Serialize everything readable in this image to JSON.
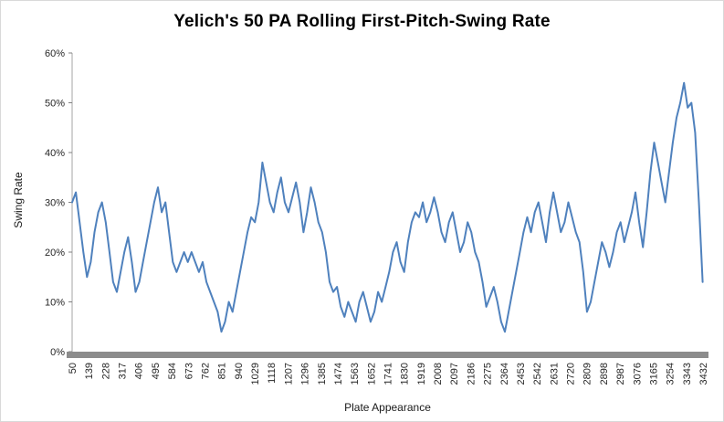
{
  "chart_data": {
    "type": "line",
    "title": "Yelich's 50 PA Rolling First-Pitch-Swing Rate",
    "xlabel": "Plate Appearance",
    "ylabel": "Swing Rate",
    "xlim": [
      50,
      3432
    ],
    "ylim": [
      0,
      60
    ],
    "y_ticks": [
      0,
      10,
      20,
      30,
      40,
      50,
      60
    ],
    "y_tick_labels": [
      "0%",
      "10%",
      "20%",
      "30%",
      "40%",
      "50%",
      "60%"
    ],
    "x_ticks": [
      50,
      139,
      228,
      317,
      406,
      495,
      584,
      673,
      762,
      851,
      940,
      1029,
      1118,
      1207,
      1296,
      1385,
      1474,
      1563,
      1652,
      1741,
      1830,
      1919,
      2008,
      2097,
      2186,
      2275,
      2364,
      2453,
      2542,
      2631,
      2720,
      2809,
      2898,
      2987,
      3076,
      3165,
      3254,
      3343,
      3432
    ],
    "grid": false,
    "legend": "none",
    "line_color": "#4f81bd",
    "axis_band_color": "#8c8c8c",
    "series_name": "50 PA rolling first-pitch-swing rate (%)",
    "x_start": 50,
    "x_step": 20,
    "values": [
      30,
      32,
      26,
      20,
      15,
      18,
      24,
      28,
      30,
      26,
      20,
      14,
      12,
      16,
      20,
      23,
      18,
      12,
      14,
      18,
      22,
      26,
      30,
      33,
      28,
      30,
      24,
      18,
      16,
      18,
      20,
      18,
      20,
      18,
      16,
      18,
      14,
      12,
      10,
      8,
      4,
      6,
      10,
      8,
      12,
      16,
      20,
      24,
      27,
      26,
      30,
      38,
      34,
      30,
      28,
      32,
      35,
      30,
      28,
      31,
      34,
      30,
      24,
      28,
      33,
      30,
      26,
      24,
      20,
      14,
      12,
      13,
      9,
      7,
      10,
      8,
      6,
      10,
      12,
      9,
      6,
      8,
      12,
      10,
      13,
      16,
      20,
      22,
      18,
      16,
      22,
      26,
      28,
      27,
      30,
      26,
      28,
      31,
      28,
      24,
      22,
      26,
      28,
      24,
      20,
      22,
      26,
      24,
      20,
      18,
      14,
      9,
      11,
      13,
      10,
      6,
      4,
      8,
      12,
      16,
      20,
      24,
      27,
      24,
      28,
      30,
      26,
      22,
      28,
      32,
      28,
      24,
      26,
      30,
      27,
      24,
      22,
      16,
      8,
      10,
      14,
      18,
      22,
      20,
      17,
      20,
      24,
      26,
      22,
      25,
      28,
      32,
      26,
      21,
      28,
      36,
      42,
      38,
      34,
      30,
      36,
      42,
      47,
      50,
      54,
      49,
      50,
      44,
      30,
      14
    ]
  }
}
